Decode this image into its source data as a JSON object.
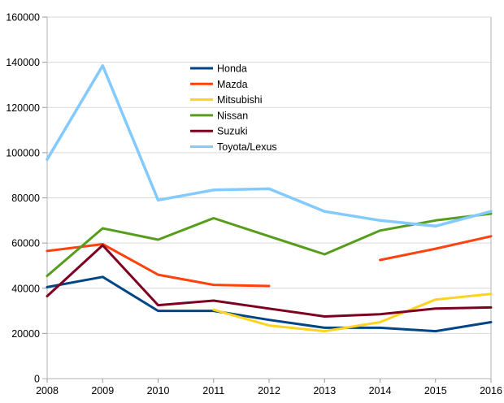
{
  "chart_data": {
    "type": "line",
    "title": "",
    "xlabel": "",
    "ylabel": "",
    "categories": [
      "2008",
      "2009",
      "2010",
      "2011",
      "2012",
      "2013",
      "2014",
      "2015",
      "2016"
    ],
    "series": [
      {
        "name": "Honda",
        "color": "#004586",
        "values": [
          40500,
          45000,
          30000,
          30000,
          26000,
          22500,
          22500,
          21000,
          25000
        ]
      },
      {
        "name": "Mazda",
        "color": "#FF420E",
        "values": [
          56500,
          59500,
          46000,
          41500,
          41000,
          null,
          52500,
          57500,
          63000
        ]
      },
      {
        "name": "Mitsubishi",
        "color": "#FFD320",
        "values": [
          null,
          null,
          null,
          30500,
          23500,
          21000,
          25000,
          35000,
          37500
        ]
      },
      {
        "name": "Nissan",
        "color": "#579D1C",
        "values": [
          45500,
          66500,
          61500,
          71000,
          63000,
          55000,
          65500,
          70000,
          73000
        ]
      },
      {
        "name": "Suzuki",
        "color": "#7E0021",
        "values": [
          36500,
          59000,
          32500,
          34500,
          31000,
          27500,
          28500,
          31000,
          31500
        ]
      },
      {
        "name": "Toyota/Lexus",
        "color": "#83CAFF",
        "values": [
          97000,
          138500,
          79000,
          83500,
          84000,
          74000,
          70000,
          67500,
          74000
        ]
      }
    ],
    "ylim": [
      0,
      160000
    ],
    "ytick_step": 20000,
    "ytick_labels": [
      "0",
      "20000",
      "40000",
      "60000",
      "80000",
      "100000",
      "120000",
      "140000",
      "160000"
    ],
    "grid": true,
    "legend_position": "inside-upper-center",
    "colors": {
      "background": "#ffffff",
      "gridline": "#d9d9d9",
      "axis_line": "#b3b3b3",
      "tick": "#999999",
      "text": "#000000"
    }
  }
}
